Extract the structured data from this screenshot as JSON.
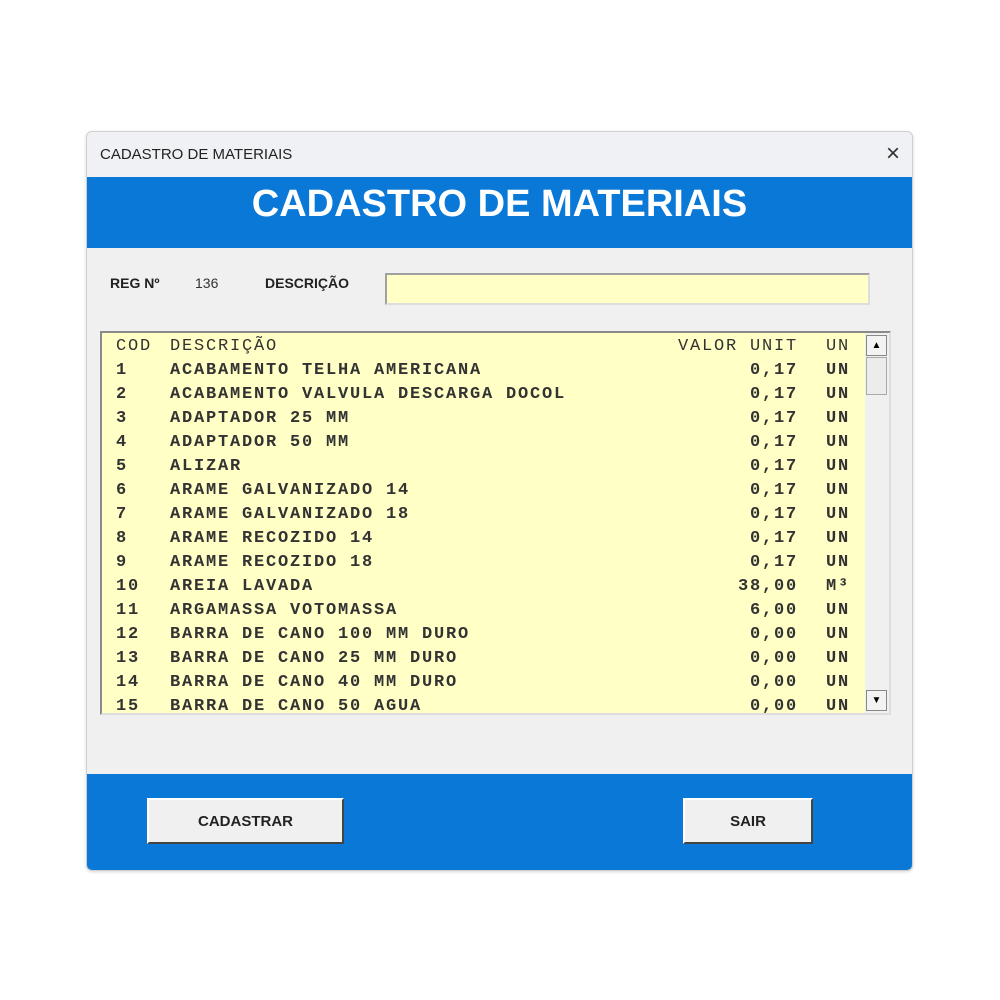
{
  "window": {
    "title": "CADASTRO DE MATERIAIS",
    "close_icon": "×"
  },
  "banner": {
    "title": "CADASTRO DE MATERIAIS"
  },
  "form": {
    "reg_label": "REG Nº",
    "reg_value": "136",
    "desc_label": "DESCRIÇÃO",
    "desc_value": "",
    "desc_placeholder": ""
  },
  "list": {
    "headers": {
      "cod": "COD",
      "desc": "DESCRIÇÃO",
      "valor": "VALOR UNIT",
      "un": "UN"
    },
    "rows": [
      {
        "cod": "1",
        "desc": "ACABAMENTO TELHA AMERICANA",
        "valor": "0,17",
        "un": "UN"
      },
      {
        "cod": "2",
        "desc": "ACABAMENTO VALVULA DESCARGA DOCOL",
        "valor": "0,17",
        "un": "UN"
      },
      {
        "cod": "3",
        "desc": "ADAPTADOR 25 MM",
        "valor": "0,17",
        "un": "UN"
      },
      {
        "cod": "4",
        "desc": "ADAPTADOR 50 MM",
        "valor": "0,17",
        "un": "UN"
      },
      {
        "cod": "5",
        "desc": "ALIZAR",
        "valor": "0,17",
        "un": "UN"
      },
      {
        "cod": "6",
        "desc": "ARAME GALVANIZADO 14",
        "valor": "0,17",
        "un": "UN"
      },
      {
        "cod": "7",
        "desc": "ARAME GALVANIZADO 18",
        "valor": "0,17",
        "un": "UN"
      },
      {
        "cod": "8",
        "desc": "ARAME RECOZIDO 14",
        "valor": "0,17",
        "un": "UN"
      },
      {
        "cod": "9",
        "desc": "ARAME RECOZIDO 18",
        "valor": "0,17",
        "un": "UN"
      },
      {
        "cod": "10",
        "desc": "AREIA LAVADA",
        "valor": "38,00",
        "un": "M³"
      },
      {
        "cod": "11",
        "desc": "ARGAMASSA VOTOMASSA",
        "valor": "6,00",
        "un": "UN"
      },
      {
        "cod": "12",
        "desc": "BARRA DE CANO 100 MM DURO",
        "valor": "0,00",
        "un": "UN"
      },
      {
        "cod": "13",
        "desc": "BARRA DE CANO 25 MM DURO",
        "valor": "0,00",
        "un": "UN"
      },
      {
        "cod": "14",
        "desc": "BARRA DE CANO 40 MM DURO",
        "valor": "0,00",
        "un": "UN"
      },
      {
        "cod": "15",
        "desc": "BARRA DE CANO 50 AGUA",
        "valor": "0,00",
        "un": "UN"
      }
    ],
    "scroll_up_icon": "▲",
    "scroll_down_icon": "▼"
  },
  "buttons": {
    "cadastrar": "CADASTRAR",
    "sair": "SAIR"
  },
  "colors": {
    "accent": "#0a78d7",
    "list_bg": "#ffffc6"
  }
}
